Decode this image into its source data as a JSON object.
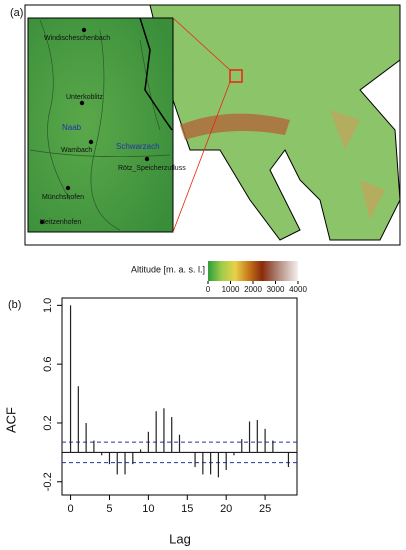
{
  "map": {
    "panel_label": "(a)",
    "places": [
      {
        "label": "Windischeschenbach"
      },
      {
        "label": "Unterkoblitz"
      },
      {
        "label": "Wambach"
      },
      {
        "label": "Rötz_Speicherzufluss"
      },
      {
        "label": "Münchshofen"
      },
      {
        "label": "Heitzenhofen"
      }
    ],
    "rivers": [
      {
        "label": "Naab"
      },
      {
        "label": "Schwarzach"
      }
    ],
    "colorbar": {
      "label": "Altitude [m. a. s. l.]",
      "lim": [
        0,
        4000
      ],
      "ticks": [
        0,
        1000,
        2000,
        3000,
        4000
      ]
    }
  },
  "chart_data": {
    "type": "stem",
    "panel_label": "(b)",
    "x_label": "Lag",
    "y_label": "ACF",
    "x": [
      0,
      1,
      2,
      3,
      4,
      5,
      6,
      7,
      8,
      9,
      10,
      11,
      12,
      13,
      14,
      15,
      16,
      17,
      18,
      19,
      20,
      21,
      22,
      23,
      24,
      25,
      26,
      27,
      28
    ],
    "values": [
      1.0,
      0.45,
      0.2,
      0.08,
      -0.02,
      -0.08,
      -0.15,
      -0.15,
      -0.08,
      0.02,
      0.14,
      0.28,
      0.3,
      0.24,
      0.12,
      0.0,
      -0.1,
      -0.15,
      -0.15,
      -0.17,
      -0.12,
      -0.02,
      0.09,
      0.21,
      0.22,
      0.16,
      0.08,
      0.0,
      -0.1
    ],
    "color": "#222222",
    "conf_limits": [
      -0.07,
      0.07
    ],
    "conf_color": "#2233aa",
    "xlim": [
      -1.1,
      29.1
    ],
    "ylim": [
      -0.29,
      1.05
    ],
    "xticks": [
      0,
      5,
      10,
      15,
      20,
      25
    ],
    "yticks": [
      -0.2,
      0.2,
      0.6,
      {
        "value": 1.0,
        "label": "1.0"
      }
    ]
  }
}
